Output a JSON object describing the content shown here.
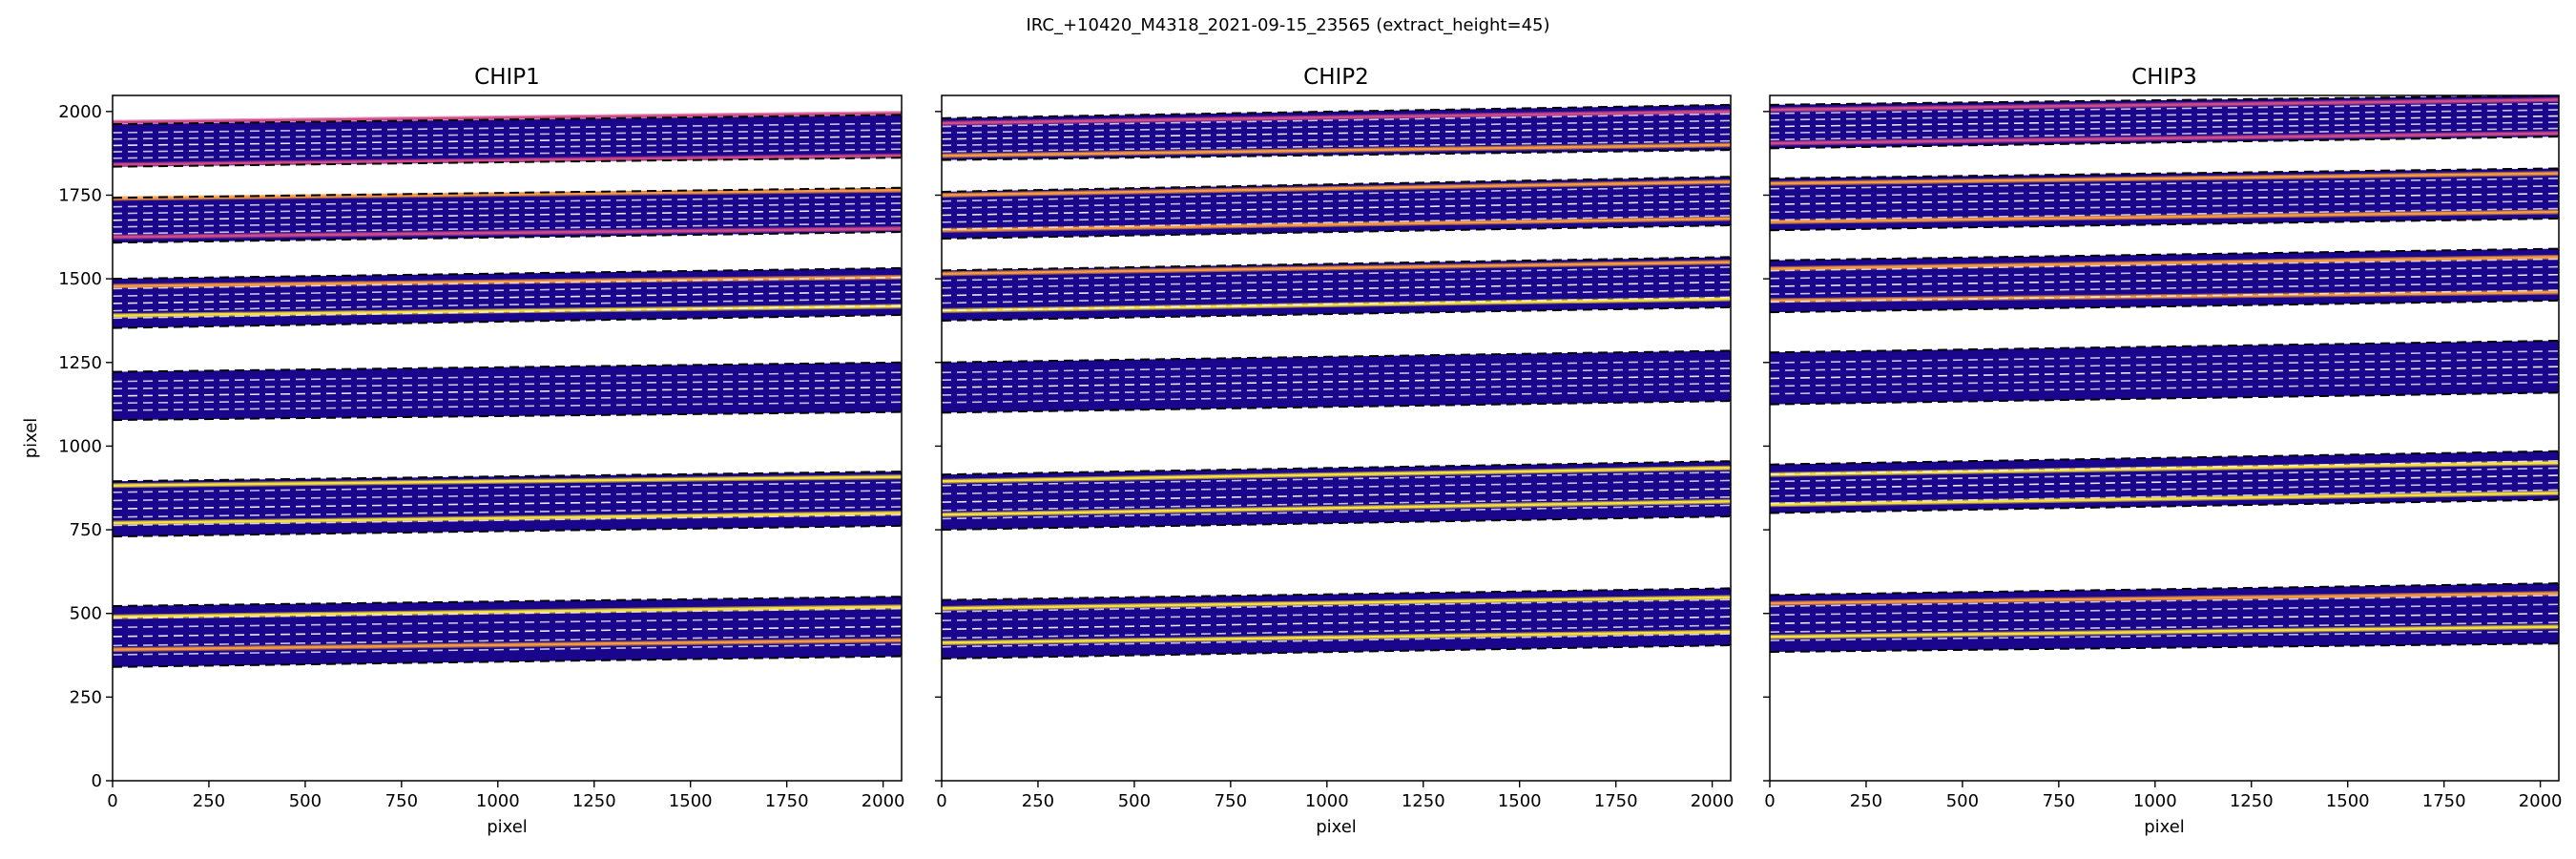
{
  "figure": {
    "suptitle": "IRC_+10420_M4318_2021-09-15_23565  (extract_height=45)"
  },
  "colors": {
    "band_fill": "#1a068c",
    "band_edge": "#000000",
    "dashed_line": "#ffffff",
    "trace_hot": "#f8df3a",
    "trace_warm": "#f79a3c",
    "trace_mid": "#cf4a86"
  },
  "chart_data": [
    {
      "type": "heatmap",
      "title": "CHIP1",
      "xlabel": "pixel",
      "ylabel": "pixel",
      "xlim": [
        0,
        2048
      ],
      "ylim": [
        0,
        2048
      ],
      "xticks": [
        0,
        250,
        500,
        750,
        1000,
        1250,
        1500,
        1750,
        2000
      ],
      "yticks": [
        0,
        250,
        500,
        750,
        1000,
        1250,
        1500,
        1750,
        2000
      ],
      "xtick_labels": [
        "0",
        "250",
        "500",
        "750",
        "1000",
        "1250",
        "1500",
        "1750",
        "2000"
      ],
      "ytick_labels": [
        "0",
        "250",
        "500",
        "750",
        "1000",
        "1250",
        "1500",
        "1750",
        "2000"
      ],
      "orders": [
        {
          "bottom": [
            1835,
            1862
          ],
          "top": [
            1962,
            1990
          ],
          "lines": [
            {
              "y": [
                1841,
                1868
              ],
              "color": "mid"
            },
            {
              "y": [
                1968,
                1995
              ],
              "color": "mid"
            }
          ]
        },
        {
          "bottom": [
            1608,
            1640
          ],
          "top": [
            1742,
            1772
          ],
          "lines": [
            {
              "y": [
                1625,
                1650
              ],
              "color": "mid"
            },
            {
              "y": [
                1740,
                1765
              ],
              "color": "warm"
            }
          ]
        },
        {
          "bottom": [
            1353,
            1392
          ],
          "top": [
            1500,
            1532
          ],
          "lines": [
            {
              "y": [
                1390,
                1418
              ],
              "color": "hot"
            },
            {
              "y": [
                1478,
                1505
              ],
              "color": "warm"
            }
          ]
        },
        {
          "bottom": [
            1078,
            1102
          ],
          "top": [
            1222,
            1250
          ],
          "lines": []
        },
        {
          "bottom": [
            730,
            762
          ],
          "top": [
            895,
            924
          ],
          "lines": [
            {
              "y": [
                770,
                800
              ],
              "color": "hot"
            },
            {
              "y": [
                882,
                908
              ],
              "color": "hot"
            }
          ]
        },
        {
          "bottom": [
            340,
            372
          ],
          "top": [
            522,
            550
          ],
          "lines": [
            {
              "y": [
                392,
                420
              ],
              "color": "warm"
            },
            {
              "y": [
                490,
                520
              ],
              "color": "hot"
            }
          ]
        }
      ]
    },
    {
      "type": "heatmap",
      "title": "CHIP2",
      "xlabel": "pixel",
      "ylabel": "",
      "xlim": [
        0,
        2048
      ],
      "ylim": [
        0,
        2048
      ],
      "xticks": [
        0,
        250,
        500,
        750,
        1000,
        1250,
        1500,
        1750,
        2000
      ],
      "yticks": [
        0,
        250,
        500,
        750,
        1000,
        1250,
        1500,
        1750,
        2000
      ],
      "xtick_labels": [
        "0",
        "250",
        "500",
        "750",
        "1000",
        "1250",
        "1500",
        "1750",
        "2000"
      ],
      "ytick_labels": [],
      "orders": [
        {
          "bottom": [
            1855,
            1885
          ],
          "top": [
            1980,
            2020
          ],
          "lines": [
            {
              "y": [
                1868,
                1900
              ],
              "color": "warm"
            },
            {
              "y": [
                1965,
                2000
              ],
              "color": "mid"
            }
          ]
        },
        {
          "bottom": [
            1620,
            1660
          ],
          "top": [
            1760,
            1805
          ],
          "lines": [
            {
              "y": [
                1645,
                1680
              ],
              "color": "warm"
            },
            {
              "y": [
                1750,
                1790
              ],
              "color": "warm"
            }
          ]
        },
        {
          "bottom": [
            1375,
            1415
          ],
          "top": [
            1525,
            1565
          ],
          "lines": [
            {
              "y": [
                1405,
                1440
              ],
              "color": "hot"
            },
            {
              "y": [
                1515,
                1550
              ],
              "color": "warm"
            }
          ]
        },
        {
          "bottom": [
            1100,
            1135
          ],
          "top": [
            1250,
            1285
          ],
          "lines": []
        },
        {
          "bottom": [
            750,
            790
          ],
          "top": [
            915,
            955
          ],
          "lines": [
            {
              "y": [
                795,
                835
              ],
              "color": "hot"
            },
            {
              "y": [
                895,
                935
              ],
              "color": "hot"
            }
          ]
        },
        {
          "bottom": [
            365,
            405
          ],
          "top": [
            540,
            575
          ],
          "lines": [
            {
              "y": [
                412,
                445
              ],
              "color": "hot"
            },
            {
              "y": [
                515,
                548
              ],
              "color": "hot"
            }
          ]
        }
      ]
    },
    {
      "type": "heatmap",
      "title": "CHIP3",
      "xlabel": "pixel",
      "ylabel": "",
      "xlim": [
        0,
        2048
      ],
      "ylim": [
        0,
        2048
      ],
      "xticks": [
        0,
        250,
        500,
        750,
        1000,
        1250,
        1500,
        1750,
        2000
      ],
      "yticks": [
        0,
        250,
        500,
        750,
        1000,
        1250,
        1500,
        1750,
        2000
      ],
      "xtick_labels": [
        "0",
        "250",
        "500",
        "750",
        "1000",
        "1250",
        "1500",
        "1750",
        "2000"
      ],
      "ytick_labels": [],
      "orders": [
        {
          "bottom": [
            1890,
            1925
          ],
          "top": [
            2020,
            2048
          ],
          "lines": [
            {
              "y": [
                1905,
                1935
              ],
              "color": "mid"
            },
            {
              "y": [
                2005,
                2035
              ],
              "color": "mid"
            }
          ]
        },
        {
          "bottom": [
            1645,
            1680
          ],
          "top": [
            1800,
            1830
          ],
          "lines": [
            {
              "y": [
                1670,
                1700
              ],
              "color": "warm"
            },
            {
              "y": [
                1785,
                1815
              ],
              "color": "warm"
            }
          ]
        },
        {
          "bottom": [
            1400,
            1435
          ],
          "top": [
            1555,
            1590
          ],
          "lines": [
            {
              "y": [
                1435,
                1460
              ],
              "color": "warm"
            },
            {
              "y": [
                1530,
                1565
              ],
              "color": "warm"
            }
          ]
        },
        {
          "bottom": [
            1125,
            1160
          ],
          "top": [
            1280,
            1315
          ],
          "lines": []
        },
        {
          "bottom": [
            800,
            840
          ],
          "top": [
            945,
            985
          ],
          "lines": [
            {
              "y": [
                825,
                860
              ],
              "color": "hot"
            },
            {
              "y": [
                915,
                950
              ],
              "color": "hot"
            }
          ]
        },
        {
          "bottom": [
            385,
            410
          ],
          "top": [
            555,
            590
          ],
          "lines": [
            {
              "y": [
                430,
                460
              ],
              "color": "hot"
            },
            {
              "y": [
                530,
                560
              ],
              "color": "warm"
            }
          ]
        }
      ]
    }
  ]
}
